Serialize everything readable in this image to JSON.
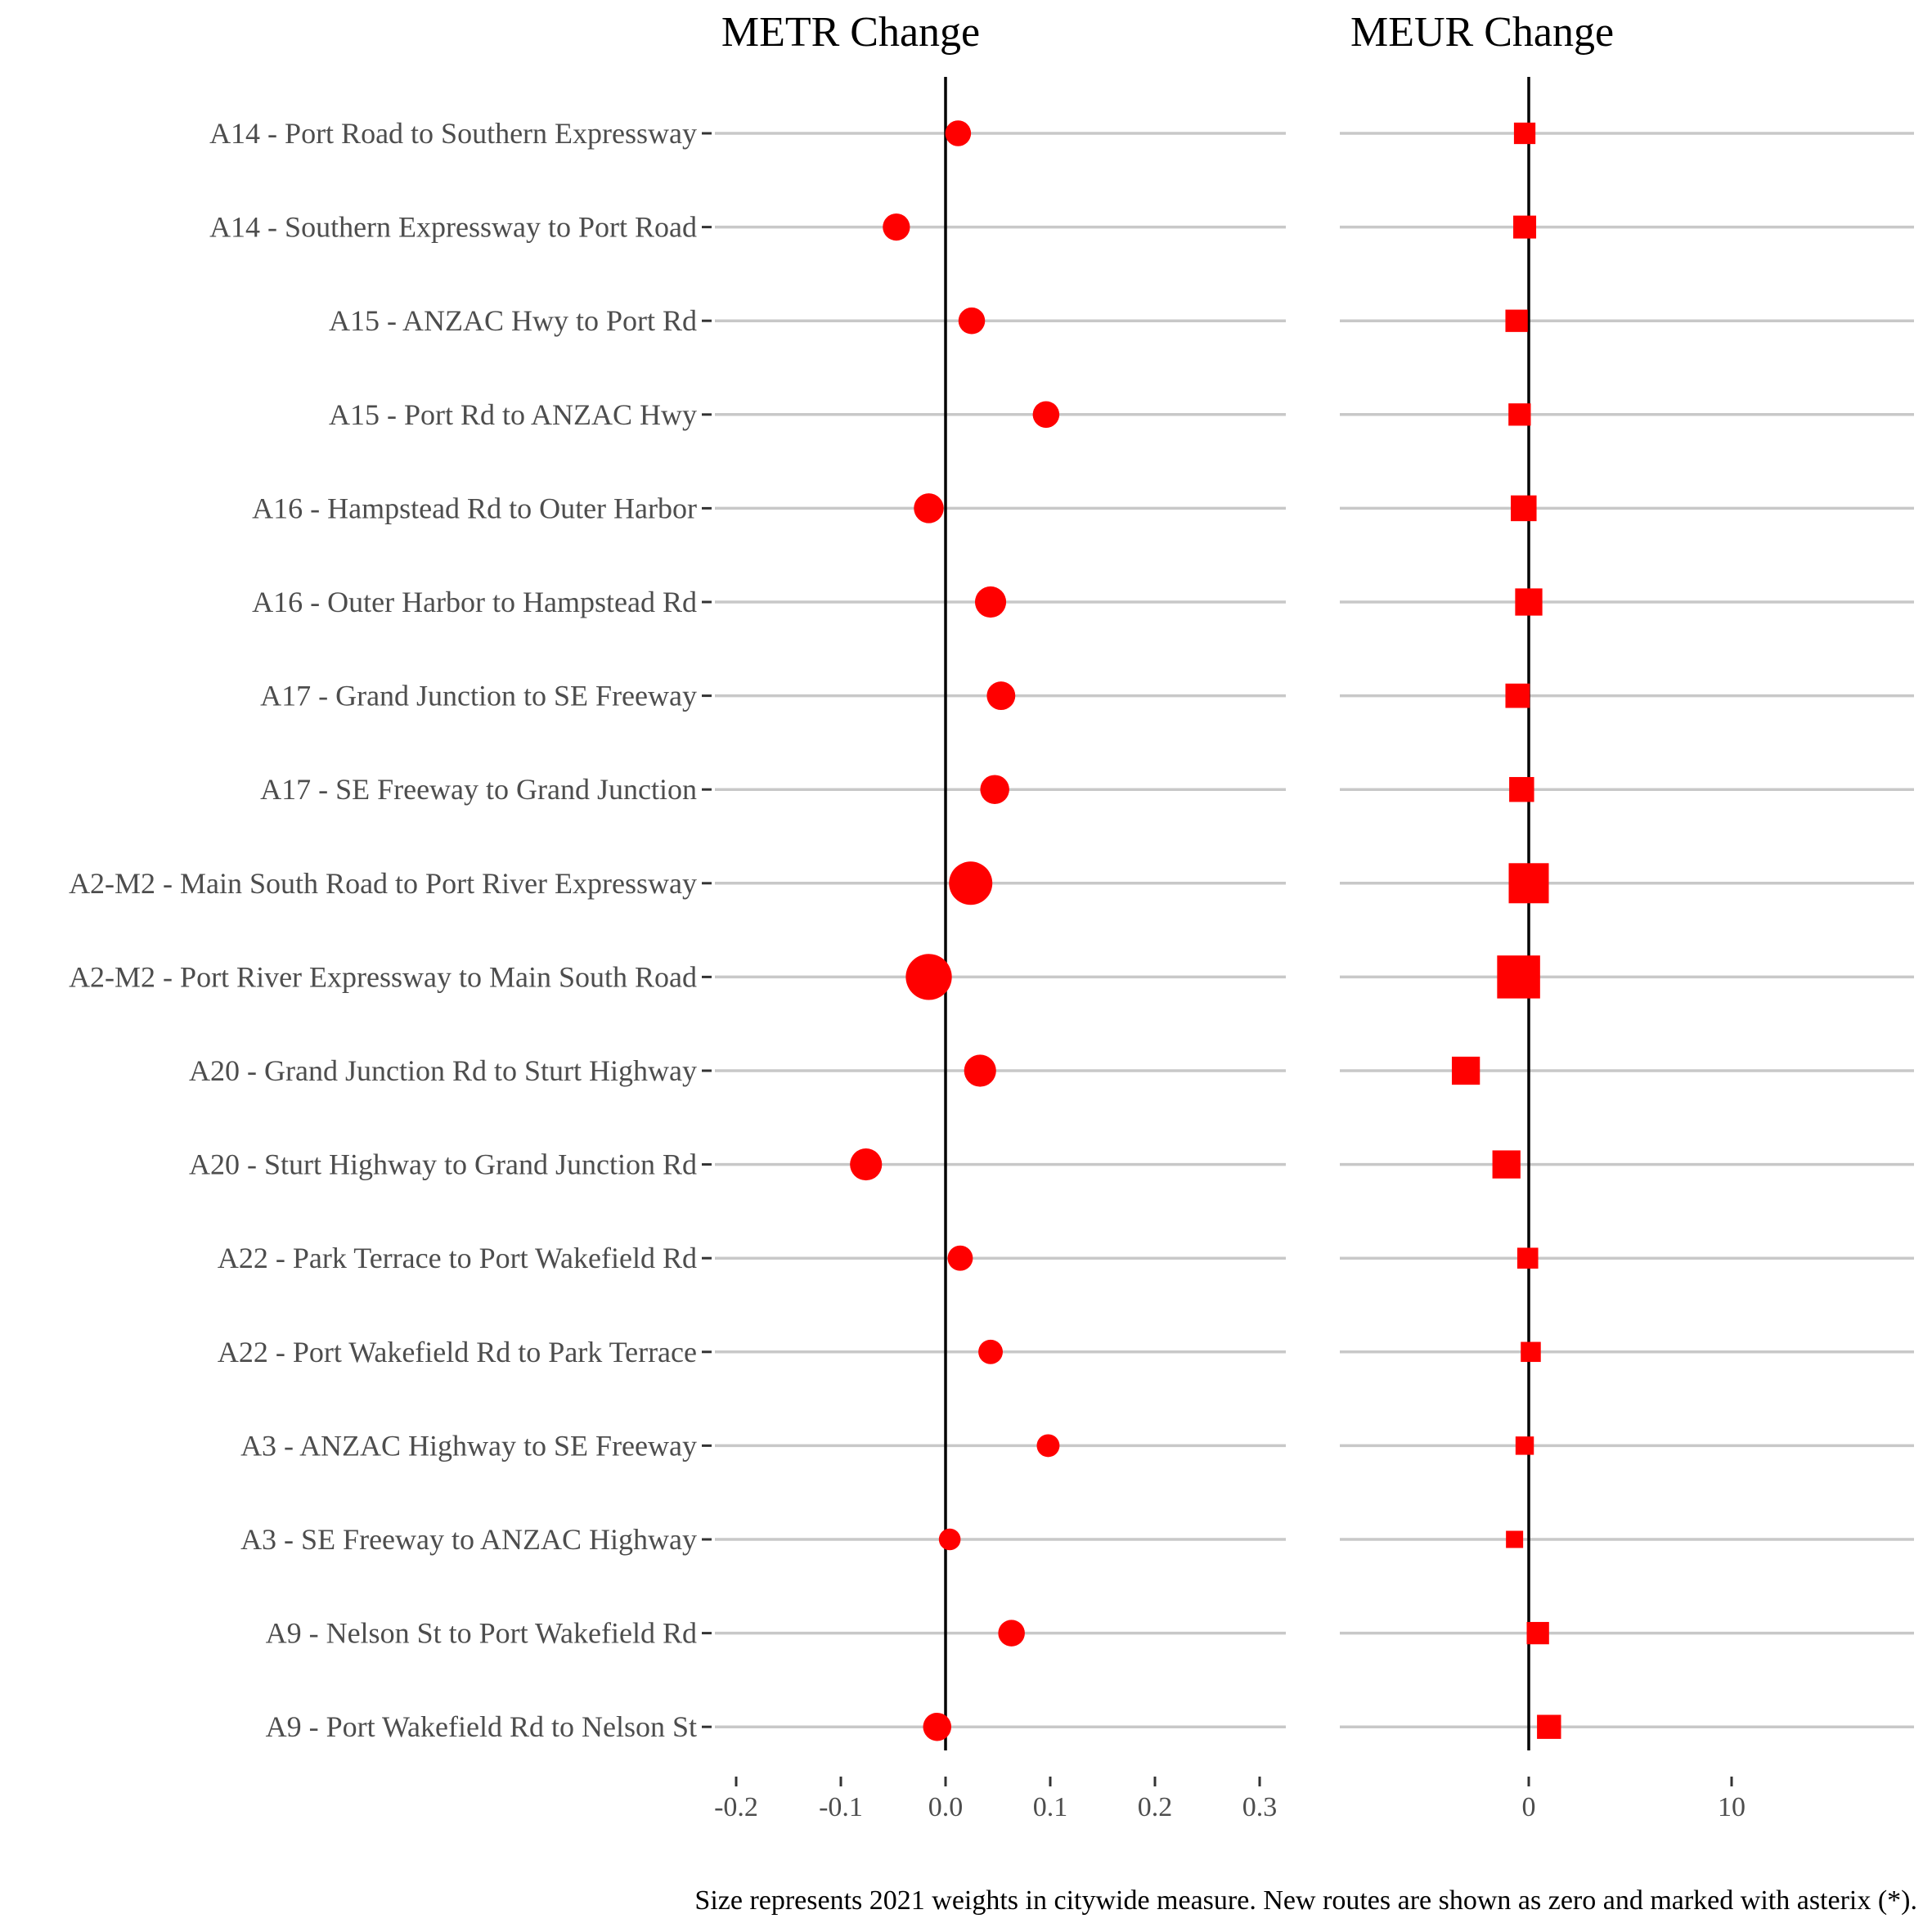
{
  "caption": "Size represents 2021 weights in citywide measure. New routes are shown as zero and marked with asterix (*).",
  "colors": {
    "marker": "#ff0000",
    "gridline": "#c8c8c8",
    "zero_line": "#000000",
    "label": "#4d4d4d"
  },
  "chart_data": [
    {
      "type": "scatter",
      "title": "METR Change",
      "marker": "circle",
      "xlabel": "",
      "ylabel": "",
      "xlim": [
        -0.2,
        0.32
      ],
      "xticks": [
        -0.2,
        -0.1,
        0.0,
        0.1,
        0.2,
        0.3
      ],
      "xtick_labels": [
        "-0.2",
        "-0.1",
        "0.0",
        "0.1",
        "0.2",
        "0.3"
      ],
      "zero_line": true,
      "grid": "horizontal",
      "points": [
        {
          "route": "A14 - Port Road to Southern Expressway",
          "value": 0.012,
          "weight": 0.35
        },
        {
          "route": "A14 - Southern Expressway to Port Road",
          "value": -0.047,
          "weight": 0.4
        },
        {
          "route": "A15 - ANZAC Hwy to Port Rd",
          "value": 0.025,
          "weight": 0.38
        },
        {
          "route": "A15 - Port Rd to ANZAC Hwy",
          "value": 0.096,
          "weight": 0.38
        },
        {
          "route": "A16 - Hampstead Rd to Outer Harbor",
          "value": -0.016,
          "weight": 0.5
        },
        {
          "route": "A16 - Outer Harbor to Hampstead Rd",
          "value": 0.043,
          "weight": 0.55
        },
        {
          "route": "A17 - Grand Junction to SE Freeway",
          "value": 0.053,
          "weight": 0.45
        },
        {
          "route": "A17 - SE Freeway to Grand Junction",
          "value": 0.047,
          "weight": 0.47
        },
        {
          "route": "A2-M2 - Main South Road to Port River Expressway",
          "value": 0.024,
          "weight": 1.0
        },
        {
          "route": "A2-M2 - Port River Expressway to Main South Road",
          "value": -0.016,
          "weight": 1.1
        },
        {
          "route": "A20 - Grand Junction Rd to Sturt Highway",
          "value": 0.033,
          "weight": 0.58
        },
        {
          "route": "A20 - Sturt Highway to Grand Junction Rd",
          "value": -0.076,
          "weight": 0.58
        },
        {
          "route": "A22 - Park Terrace to Port Wakefield Rd",
          "value": 0.014,
          "weight": 0.33
        },
        {
          "route": "A22 - Port Wakefield Rd to Park Terrace",
          "value": 0.043,
          "weight": 0.3
        },
        {
          "route": "A3 - ANZAC Highway to SE Freeway",
          "value": 0.098,
          "weight": 0.24
        },
        {
          "route": "A3 - SE Freeway to ANZAC Highway",
          "value": 0.004,
          "weight": 0.2
        },
        {
          "route": "A9 - Nelson St to Port Wakefield Rd",
          "value": 0.063,
          "weight": 0.38
        },
        {
          "route": "A9 - Port Wakefield Rd to Nelson St",
          "value": -0.008,
          "weight": 0.44
        }
      ]
    },
    {
      "type": "scatter",
      "title": "MEUR Change",
      "marker": "square",
      "xlabel": "",
      "ylabel": "",
      "xlim": [
        -9.3,
        19.2
      ],
      "xticks": [
        0,
        10
      ],
      "xtick_labels": [
        "0",
        "10"
      ],
      "zero_line": true,
      "grid": "horizontal",
      "points": [
        {
          "route": "A14 - Port Road to Southern Expressway",
          "value": -0.2,
          "weight": 0.35
        },
        {
          "route": "A14 - Southern Expressway to Port Road",
          "value": -0.2,
          "weight": 0.4
        },
        {
          "route": "A15 - ANZAC Hwy to Port Rd",
          "value": -0.6,
          "weight": 0.38
        },
        {
          "route": "A15 - Port Rd to ANZAC Hwy",
          "value": -0.45,
          "weight": 0.38
        },
        {
          "route": "A16 - Hampstead Rd to Outer Harbor",
          "value": -0.25,
          "weight": 0.5
        },
        {
          "route": "A16 - Outer Harbor to Hampstead Rd",
          "value": 0.0,
          "weight": 0.55
        },
        {
          "route": "A17 - Grand Junction to SE Freeway",
          "value": -0.55,
          "weight": 0.45
        },
        {
          "route": "A17 - SE Freeway to Grand Junction",
          "value": -0.35,
          "weight": 0.47
        },
        {
          "route": "A2-M2 - Main South Road to Port River Expressway",
          "value": 0.0,
          "weight": 1.0
        },
        {
          "route": "A2-M2 - Port River Expressway to Main South Road",
          "value": -0.5,
          "weight": 1.1
        },
        {
          "route": "A20 - Grand Junction Rd to Sturt Highway",
          "value": -3.1,
          "weight": 0.58
        },
        {
          "route": "A20 - Sturt Highway to Grand Junction Rd",
          "value": -1.1,
          "weight": 0.58
        },
        {
          "route": "A22 - Park Terrace to Port Wakefield Rd",
          "value": -0.05,
          "weight": 0.33
        },
        {
          "route": "A22 - Port Wakefield Rd to Park Terrace",
          "value": 0.1,
          "weight": 0.3
        },
        {
          "route": "A3 - ANZAC Highway to SE Freeway",
          "value": -0.2,
          "weight": 0.24
        },
        {
          "route": "A3 - SE Freeway to ANZAC Highway",
          "value": -0.7,
          "weight": 0.2
        },
        {
          "route": "A9 - Nelson St to Port Wakefield Rd",
          "value": 0.45,
          "weight": 0.38
        },
        {
          "route": "A9 - Port Wakefield Rd to Nelson St",
          "value": 1.0,
          "weight": 0.44
        }
      ]
    }
  ]
}
